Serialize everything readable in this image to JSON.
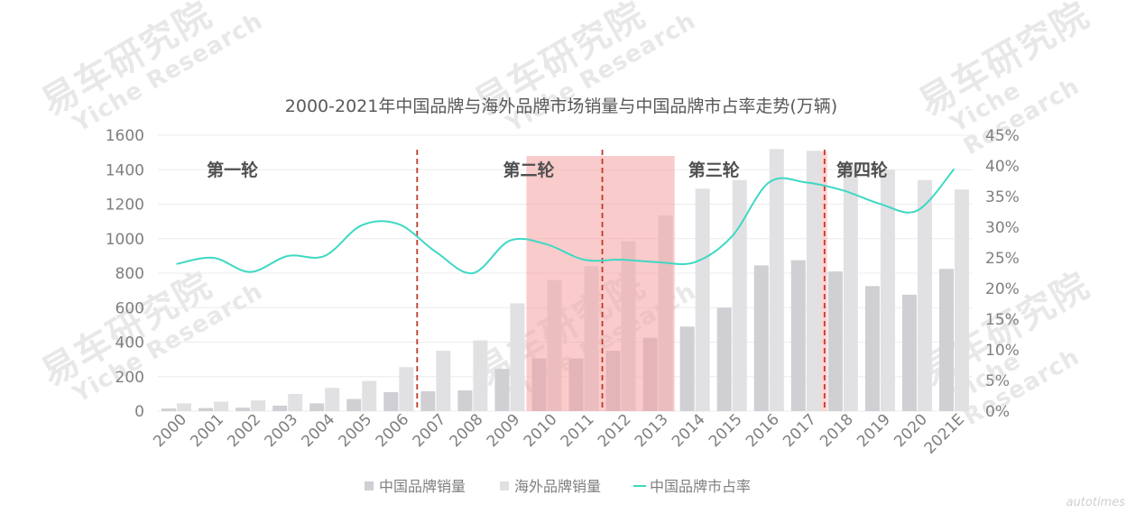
{
  "watermark": {
    "cn": "易车研究院",
    "en": "Yiche Research"
  },
  "corner_logo": "autotimes",
  "chart_data": {
    "type": "bar",
    "title": "2000-2021年中国品牌与海外品牌市场销量与中国品牌市占率走势(万辆)",
    "categories": [
      "2000",
      "2001",
      "2002",
      "2003",
      "2004",
      "2005",
      "2006",
      "2007",
      "2008",
      "2009",
      "2010",
      "2011",
      "2012",
      "2013",
      "2014",
      "2015",
      "2016",
      "2017",
      "2018",
      "2019",
      "2020",
      "2021E"
    ],
    "series": [
      {
        "name": "中国品牌销量",
        "kind": "bar",
        "color": "#cfcfd4",
        "values": [
          15,
          18,
          20,
          32,
          45,
          70,
          110,
          115,
          120,
          245,
          305,
          305,
          350,
          425,
          490,
          600,
          845,
          875,
          810,
          725,
          675,
          825
        ]
      },
      {
        "name": "海外品牌销量",
        "kind": "bar",
        "color": "#e1e1e3",
        "values": [
          45,
          55,
          62,
          100,
          135,
          175,
          255,
          350,
          410,
          625,
          760,
          840,
          985,
          1135,
          1290,
          1340,
          1520,
          1510,
          1430,
          1400,
          1340,
          1285
        ]
      },
      {
        "name": "中国品牌市占率",
        "kind": "line",
        "axis": "right",
        "color": "#3ed8c4",
        "values": [
          0.24,
          0.25,
          0.227,
          0.253,
          0.253,
          0.303,
          0.305,
          0.26,
          0.225,
          0.278,
          0.272,
          0.247,
          0.247,
          0.243,
          0.243,
          0.285,
          0.373,
          0.373,
          0.36,
          0.338,
          0.327,
          0.395
        ]
      }
    ],
    "y_left": {
      "min": 0,
      "max": 1600,
      "ticks": [
        "0",
        "200",
        "400",
        "600",
        "800",
        "1000",
        "1200",
        "1400",
        "1600"
      ]
    },
    "y_right": {
      "min": 0,
      "max": 0.45,
      "ticks": [
        "0%",
        "5%",
        "10%",
        "15%",
        "20%",
        "25%",
        "30%",
        "35%",
        "40%",
        "45%"
      ]
    },
    "grid": true,
    "legend": {
      "placement": "bottom"
    },
    "phases": [
      {
        "label": "第一轮",
        "center_category": "2002"
      },
      {
        "label": "第二轮",
        "center_category": "2010"
      },
      {
        "label": "第三轮",
        "center_category": "2015"
      },
      {
        "label": "第四轮",
        "center_category": "2019"
      }
    ],
    "phase_dividers_after": [
      "2006",
      "2011",
      "2017"
    ],
    "highlight_range": {
      "from": "2010",
      "to": "2013",
      "color": "#f6a1a1"
    }
  }
}
